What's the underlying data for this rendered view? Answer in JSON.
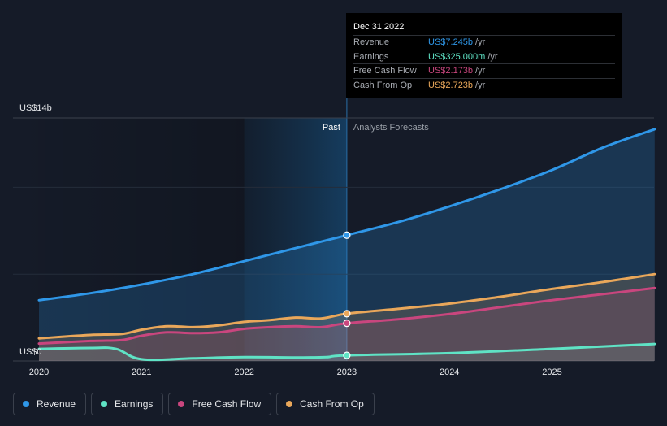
{
  "chart_data": {
    "type": "line",
    "y_axis": {
      "top_label": "US$14b",
      "bottom_label": "US$0",
      "ylim": [
        0,
        14
      ]
    },
    "x_axis": {
      "ticks": [
        "2020",
        "2021",
        "2022",
        "2023",
        "2024",
        "2025"
      ],
      "xlim": [
        2020,
        2026
      ]
    },
    "past_label": "Past",
    "forecast_label": "Analysts Forecasts",
    "highlight_x": 2023.0,
    "series": [
      {
        "name": "Revenue",
        "color": "#2f97e8",
        "points": [
          [
            2020,
            3.5
          ],
          [
            2020.5,
            3.9
          ],
          [
            2021,
            4.4
          ],
          [
            2021.5,
            5.0
          ],
          [
            2022,
            5.75
          ],
          [
            2022.5,
            6.5
          ],
          [
            2023,
            7.245
          ],
          [
            2023.5,
            8.0
          ],
          [
            2024,
            8.9
          ],
          [
            2024.5,
            9.9
          ],
          [
            2025,
            11.0
          ],
          [
            2025.5,
            12.3
          ],
          [
            2026,
            13.35
          ]
        ]
      },
      {
        "name": "Earnings",
        "color": "#5fe3c5",
        "points": [
          [
            2020,
            0.7
          ],
          [
            2020.5,
            0.75
          ],
          [
            2020.75,
            0.7
          ],
          [
            2021,
            0.1
          ],
          [
            2021.5,
            0.15
          ],
          [
            2022,
            0.22
          ],
          [
            2022.5,
            0.2
          ],
          [
            2022.8,
            0.22
          ],
          [
            2023,
            0.325
          ],
          [
            2024,
            0.45
          ],
          [
            2025,
            0.7
          ],
          [
            2026,
            0.98
          ]
        ]
      },
      {
        "name": "Free Cash Flow",
        "color": "#c9467e",
        "points": [
          [
            2020,
            1.0
          ],
          [
            2020.5,
            1.15
          ],
          [
            2020.8,
            1.2
          ],
          [
            2021,
            1.45
          ],
          [
            2021.25,
            1.65
          ],
          [
            2021.5,
            1.6
          ],
          [
            2021.75,
            1.65
          ],
          [
            2022,
            1.85
          ],
          [
            2022.25,
            1.95
          ],
          [
            2022.5,
            2.0
          ],
          [
            2022.75,
            1.95
          ],
          [
            2023,
            2.173
          ],
          [
            2023.5,
            2.4
          ],
          [
            2024,
            2.7
          ],
          [
            2024.5,
            3.1
          ],
          [
            2025,
            3.5
          ],
          [
            2025.5,
            3.85
          ],
          [
            2026,
            4.2
          ]
        ]
      },
      {
        "name": "Cash From Op",
        "color": "#e9a75a",
        "points": [
          [
            2020,
            1.3
          ],
          [
            2020.5,
            1.5
          ],
          [
            2020.8,
            1.55
          ],
          [
            2021,
            1.8
          ],
          [
            2021.25,
            2.0
          ],
          [
            2021.5,
            1.95
          ],
          [
            2021.75,
            2.05
          ],
          [
            2022,
            2.25
          ],
          [
            2022.25,
            2.35
          ],
          [
            2022.5,
            2.5
          ],
          [
            2022.75,
            2.45
          ],
          [
            2023,
            2.723
          ],
          [
            2023.5,
            3.0
          ],
          [
            2024,
            3.3
          ],
          [
            2024.5,
            3.7
          ],
          [
            2025,
            4.15
          ],
          [
            2025.5,
            4.55
          ],
          [
            2026,
            5.0
          ]
        ]
      }
    ]
  },
  "tooltip": {
    "date": "Dec 31 2022",
    "unit": "/yr",
    "rows": [
      {
        "label": "Revenue",
        "value": "US$7.245b",
        "color": "#2f97e8"
      },
      {
        "label": "Earnings",
        "value": "US$325.000m",
        "color": "#5fe3c5"
      },
      {
        "label": "Free Cash Flow",
        "value": "US$2.173b",
        "color": "#c9467e"
      },
      {
        "label": "Cash From Op",
        "value": "US$2.723b",
        "color": "#e9a75a"
      }
    ]
  },
  "legend": [
    {
      "label": "Revenue",
      "color": "#2f97e8"
    },
    {
      "label": "Earnings",
      "color": "#5fe3c5"
    },
    {
      "label": "Free Cash Flow",
      "color": "#c9467e"
    },
    {
      "label": "Cash From Op",
      "color": "#e9a75a"
    }
  ]
}
